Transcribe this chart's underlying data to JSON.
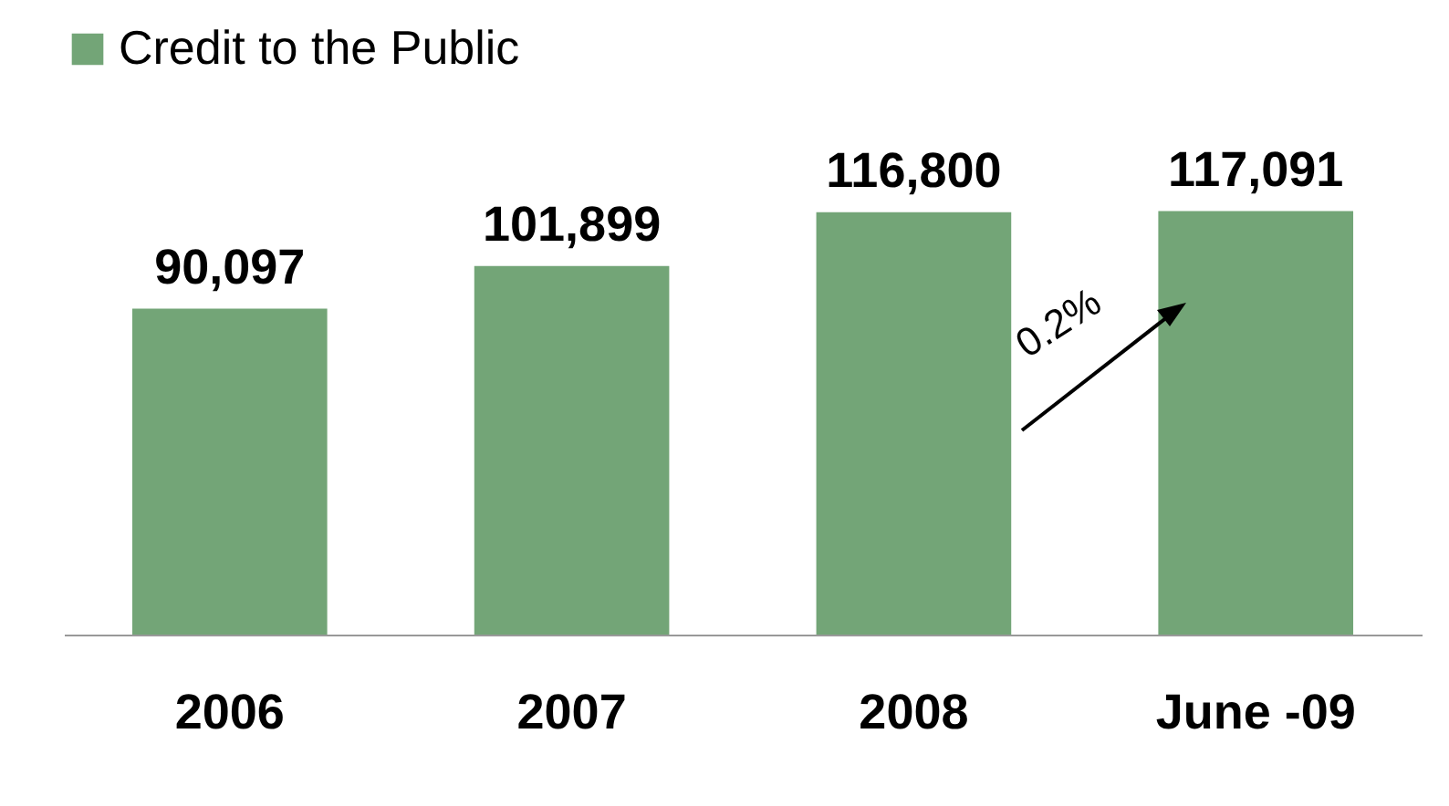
{
  "chart_data": {
    "type": "bar",
    "categories": [
      "2006",
      "2007",
      "2008",
      "June -09"
    ],
    "series": [
      {
        "name": "Credit to the Public",
        "color": "#73a577",
        "values": [
          90097,
          101899,
          116800,
          117091
        ],
        "value_labels": [
          "90,097",
          "101,899",
          "116,800",
          "117,091"
        ]
      }
    ],
    "legend": "top",
    "grid": false,
    "annotations": [
      "0.2%"
    ]
  }
}
